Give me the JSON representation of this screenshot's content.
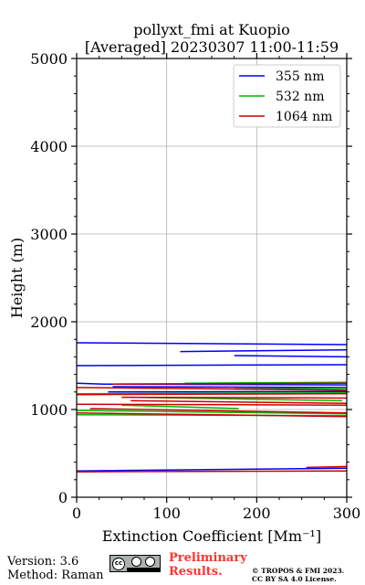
{
  "chart_data": {
    "type": "line",
    "title": "pollyxt_fmi at Kuopio",
    "subtitle": "[Averaged] 20230307 11:00-11:59",
    "xlabel": "Extinction Coefficient [Mm⁻¹]",
    "ylabel": "Height (m)",
    "xlim": [
      0,
      300
    ],
    "ylim": [
      0,
      5000
    ],
    "xticks": [
      "0",
      "100",
      "200",
      "300"
    ],
    "yticks": [
      "0",
      "1000",
      "2000",
      "3000",
      "4000",
      "5000"
    ],
    "grid": true,
    "legend_position": "top-right",
    "series": [
      {
        "name": "355 nm",
        "color": "#0000ff",
        "segments": [
          [
            [
              300,
              1740
            ],
            [
              0,
              1760
            ]
          ],
          [
            [
              300,
              1680
            ],
            [
              115,
              1660
            ]
          ],
          [
            [
              175,
              1615
            ],
            [
              300,
              1600
            ]
          ],
          [
            [
              300,
              1510
            ],
            [
              0,
              1500
            ],
            [
              0,
              1490
            ]
          ],
          [
            [
              0,
              1300
            ],
            [
              30,
              1290
            ],
            [
              300,
              1280
            ]
          ],
          [
            [
              40,
              1260
            ],
            [
              300,
              1250
            ]
          ],
          [
            [
              35,
              1200
            ],
            [
              300,
              1205
            ]
          ],
          [
            [
              300,
              330
            ],
            [
              0,
              300
            ],
            [
              0,
              280
            ]
          ]
        ]
      },
      {
        "name": "532 nm",
        "color": "#00bb00",
        "segments": [
          [
            [
              300,
              1310
            ],
            [
              120,
              1300
            ]
          ],
          [
            [
              300,
              1240
            ],
            [
              175,
              1235
            ]
          ],
          [
            [
              0,
              1180
            ],
            [
              300,
              1190
            ]
          ],
          [
            [
              60,
              1140
            ],
            [
              295,
              1100
            ]
          ],
          [
            [
              50,
              1050
            ],
            [
              180,
              1010
            ]
          ],
          [
            [
              0,
              990
            ],
            [
              300,
              950
            ]
          ],
          [
            [
              0,
              940
            ],
            [
              300,
              930
            ]
          ]
        ]
      },
      {
        "name": "1064 nm",
        "color": "#cc0000",
        "segments": [
          [
            [
              300,
              1300
            ],
            [
              40,
              1290
            ]
          ],
          [
            [
              0,
              1250
            ],
            [
              300,
              1220
            ]
          ],
          [
            [
              300,
              1180
            ],
            [
              0,
              1170
            ]
          ],
          [
            [
              50,
              1140
            ],
            [
              300,
              1130
            ]
          ],
          [
            [
              60,
              1100
            ],
            [
              300,
              1070
            ]
          ],
          [
            [
              0,
              1060
            ],
            [
              300,
              1050
            ]
          ],
          [
            [
              15,
              1010
            ],
            [
              300,
              960
            ]
          ],
          [
            [
              0,
              960
            ],
            [
              300,
              920
            ]
          ],
          [
            [
              255,
              340
            ],
            [
              300,
              350
            ]
          ],
          [
            [
              300,
              300
            ],
            [
              0,
              290
            ],
            [
              0,
              280
            ]
          ]
        ]
      }
    ]
  },
  "footer": {
    "version": "Version: 3.6",
    "method": "Method: Raman",
    "badge": "cc",
    "preliminary_line1": "Preliminary",
    "preliminary_line2": "Results.",
    "copyright_line1": "© TROPOS & FMI 2023.",
    "copyright_line2": "CC BY SA 4.0 License."
  }
}
